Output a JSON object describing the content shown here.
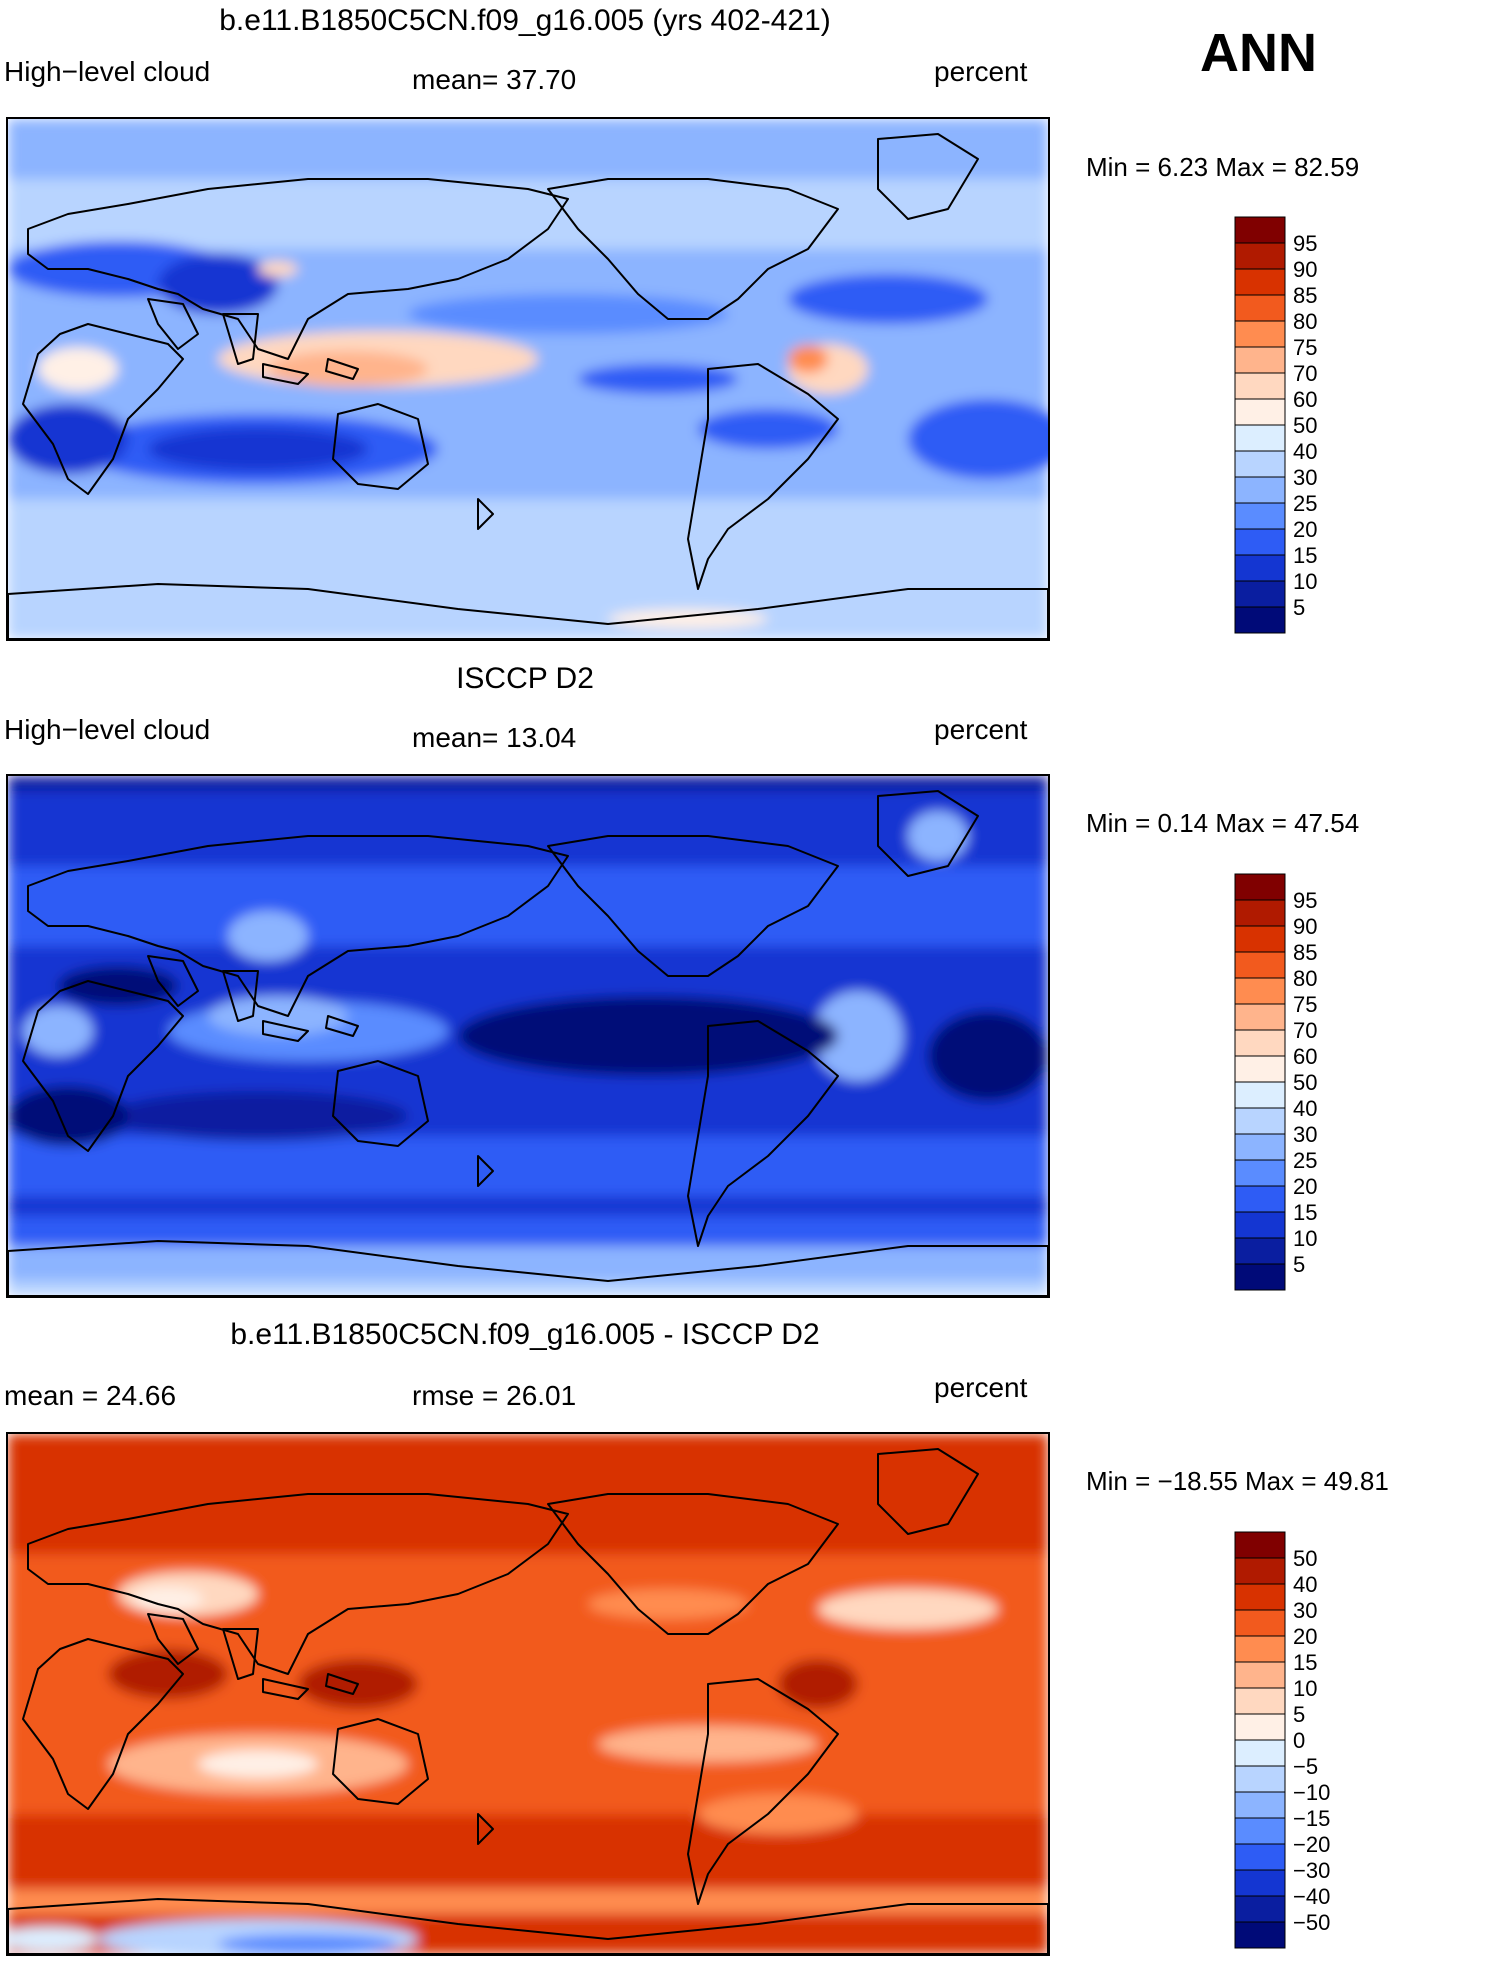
{
  "season": "ANN",
  "panels": [
    {
      "title": "b.e11.B1850C5CN.f09_g16.005 (yrs 402-421)",
      "left_label": "High−level cloud",
      "center_label": "mean=   37.70",
      "right_label": "percent",
      "minmax": "Min =    6.23 Max =   82.59",
      "field": "model"
    },
    {
      "title": "ISCCP D2",
      "left_label": "High−level cloud",
      "center_label": "mean=   13.04",
      "right_label": "percent",
      "minmax": "Min =    0.14 Max =   47.54",
      "field": "obs"
    },
    {
      "title": "b.e11.B1850C5CN.f09_g16.005 - ISCCP D2",
      "left_label": "mean =   24.66",
      "center_label": "rmse =   26.01",
      "right_label": "percent",
      "minmax": "Min = −18.55 Max =   49.81",
      "field": "diff"
    }
  ],
  "colorbars": {
    "abs": {
      "labels": [
        "95",
        "90",
        "85",
        "80",
        "75",
        "70",
        "60",
        "50",
        "40",
        "30",
        "25",
        "20",
        "15",
        "10",
        "5"
      ],
      "colors": [
        "#800000",
        "#b01a00",
        "#d83200",
        "#f25a1e",
        "#ff8c50",
        "#ffb48c",
        "#ffd8c0",
        "#fff0e6",
        "#dceeff",
        "#b8d4ff",
        "#8cb4ff",
        "#5a8cff",
        "#2e5cf5",
        "#1436d2",
        "#0a1ea0",
        "#000a78"
      ]
    },
    "diff": {
      "labels": [
        "50",
        "40",
        "30",
        "20",
        "15",
        "10",
        "5",
        "0",
        "−5",
        "−10",
        "−15",
        "−20",
        "−30",
        "−40",
        "−50"
      ],
      "colors": [
        "#800000",
        "#b01a00",
        "#d83200",
        "#f25a1e",
        "#ff8c50",
        "#ffb48c",
        "#ffd8c0",
        "#fff0e6",
        "#dceeff",
        "#b8d4ff",
        "#8cb4ff",
        "#5a8cff",
        "#2e5cf5",
        "#1436d2",
        "#0a1ea0",
        "#000a78"
      ]
    }
  },
  "chart_data": [
    {
      "type": "heatmap",
      "title": "b.e11.B1850C5CN.f09_g16.005 (yrs 402-421)",
      "variable": "High-level cloud",
      "units": "percent",
      "mean": 37.7,
      "min": 6.23,
      "max": 82.59,
      "levels": [
        5,
        10,
        15,
        20,
        25,
        30,
        40,
        50,
        60,
        70,
        75,
        80,
        85,
        90,
        95
      ]
    },
    {
      "type": "heatmap",
      "title": "ISCCP D2",
      "variable": "High-level cloud",
      "units": "percent",
      "mean": 13.04,
      "min": 0.14,
      "max": 47.54,
      "levels": [
        5,
        10,
        15,
        20,
        25,
        30,
        40,
        50,
        60,
        70,
        75,
        80,
        85,
        90,
        95
      ]
    },
    {
      "type": "heatmap",
      "title": "b.e11.B1850C5CN.f09_g16.005 - ISCCP D2",
      "units": "percent",
      "mean": 24.66,
      "rmse": 26.01,
      "min": -18.55,
      "max": 49.81,
      "levels": [
        -50,
        -40,
        -30,
        -20,
        -15,
        -10,
        -5,
        0,
        5,
        10,
        15,
        20,
        30,
        40,
        50
      ]
    }
  ]
}
